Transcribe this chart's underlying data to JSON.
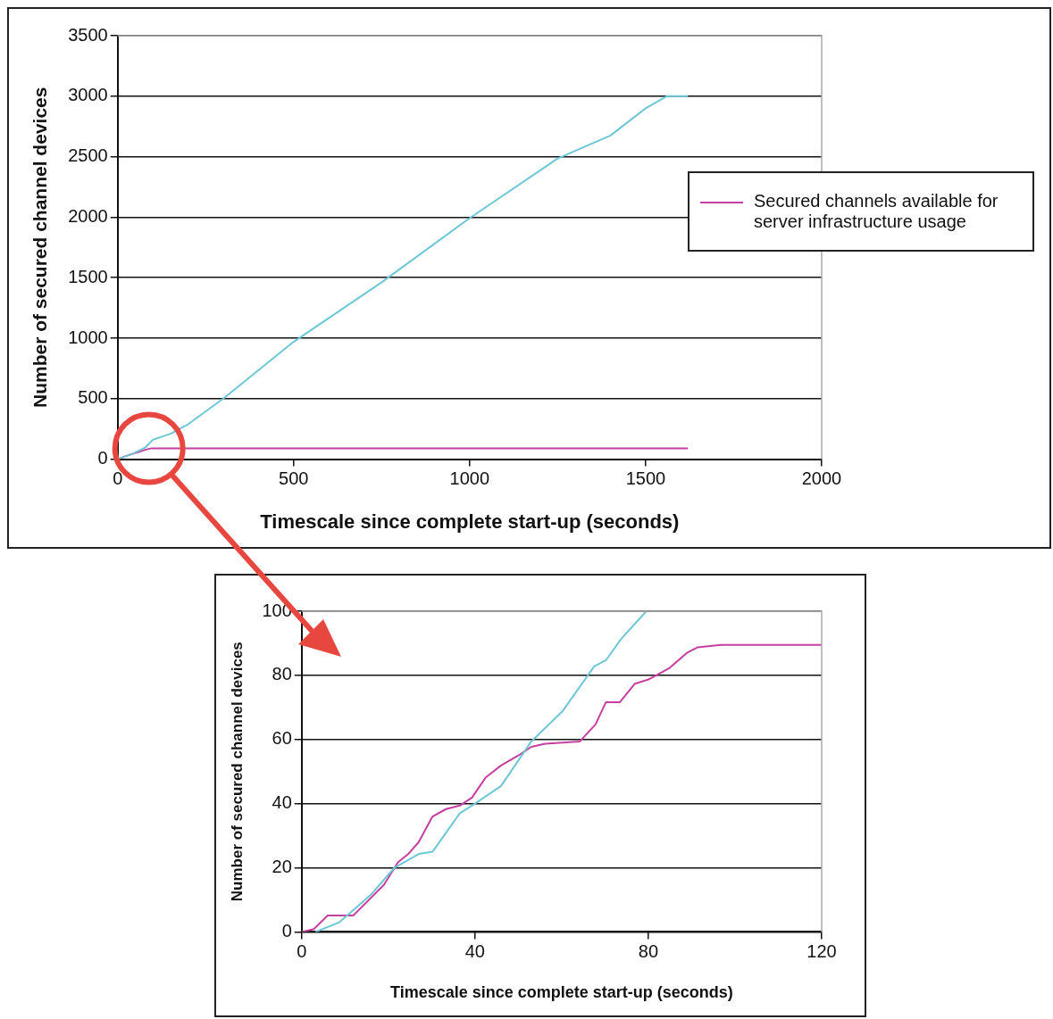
{
  "chart_data": [
    {
      "type": "line",
      "xlabel": "Timescale since complete start-up (seconds)",
      "ylabel": "Number of secured channel devices",
      "xlim": [
        0,
        2000
      ],
      "xticks": [
        0,
        500,
        1000,
        1500,
        2000
      ],
      "ylim": [
        0,
        3500
      ],
      "yticks": [
        0,
        500,
        1000,
        1500,
        2000,
        2500,
        3000,
        3500
      ],
      "grid": "y",
      "legend": "right",
      "series": [
        {
          "color": "#6cc7d6",
          "x": [
            0,
            40,
            80,
            100,
            150,
            200,
            300,
            500,
            750,
            1000,
            1250,
            1400,
            1500,
            1560,
            1620
          ],
          "values": [
            0,
            40,
            100,
            160,
            210,
            288,
            500,
            970,
            1462,
            1992,
            2485,
            2675,
            2900,
            3000,
            3000
          ]
        },
        {
          "name": "Secured channels available for server infrastructure usage",
          "color": "#c63fa0",
          "x": [
            0,
            20,
            40,
            60,
            80,
            97,
            1620
          ],
          "values": [
            0,
            22,
            42,
            59,
            79,
            90,
            90
          ]
        }
      ]
    },
    {
      "type": "line",
      "xlabel": "Timescale since complete start-up (seconds)",
      "ylabel": "Number of secured channel devices",
      "xlim": [
        0,
        120
      ],
      "xticks": [
        0,
        40,
        80,
        120
      ],
      "ylim": [
        0,
        100
      ],
      "yticks": [
        0,
        20,
        40,
        60,
        80,
        100
      ],
      "grid": "y",
      "series": [
        {
          "color": "#6cc7d6",
          "x": [
            3.2,
            8.7,
            15.9,
            21.4,
            27,
            30.2,
            36.5,
            40,
            46,
            53,
            60.3,
            67.5,
            70.2,
            73.8,
            79.4
          ],
          "values": [
            0,
            3,
            11.5,
            20,
            24.3,
            25,
            37,
            40,
            45.5,
            59.4,
            69,
            82.8,
            84.7,
            91.5,
            99.8
          ]
        },
        {
          "color": "#c63fa0",
          "x": [
            0,
            2.8,
            6,
            11.9,
            19,
            22.2,
            24.6,
            27,
            30.2,
            33.3,
            36.5,
            39.3,
            42.5,
            46,
            50,
            53,
            56.2,
            64.2,
            67.8,
            70.2,
            73.4,
            76.9,
            80,
            84.9,
            88.9,
            91.3,
            96.8,
            120
          ],
          "values": [
            0,
            0.9,
            5.1,
            5.1,
            14.7,
            21.7,
            24.3,
            28,
            36,
            38.3,
            39.4,
            41.9,
            48.2,
            51.9,
            55,
            57.7,
            58.7,
            59.4,
            64.7,
            71.6,
            71.6,
            77.4,
            78.7,
            82.3,
            87,
            88.7,
            89.5,
            89.5
          ]
        }
      ]
    }
  ]
}
